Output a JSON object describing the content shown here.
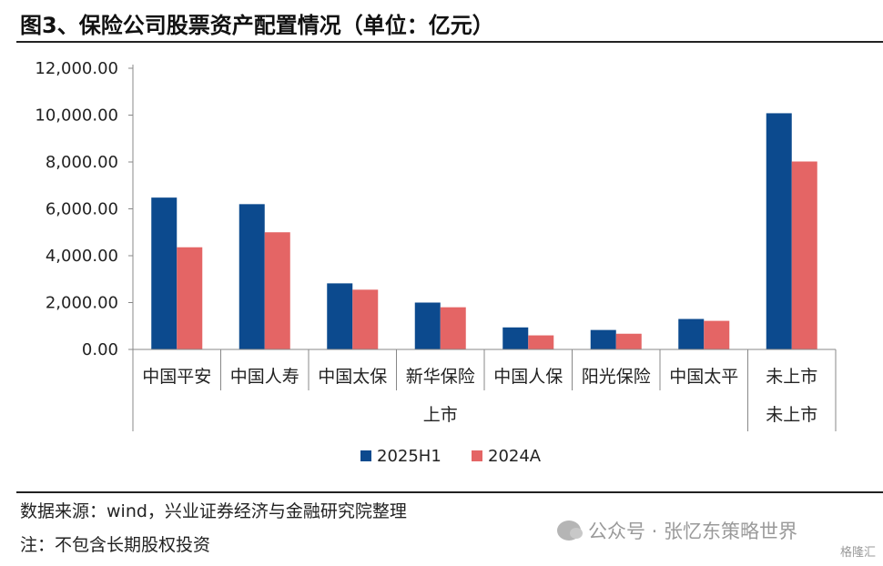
{
  "title": "图3、保险公司股票资产配置情况（单位：亿元）",
  "chart_data": {
    "type": "bar",
    "categories": [
      "中国平安",
      "中国人寿",
      "中国太保",
      "新华保险",
      "中国人保",
      "阳光保险",
      "中国太平",
      "未上市"
    ],
    "groups": [
      {
        "label": "上市",
        "count": 7
      },
      {
        "label": "未上市",
        "count": 1
      }
    ],
    "series": [
      {
        "name": "2025H1",
        "color": "#0c4a8e",
        "values": [
          6480,
          6200,
          2820,
          2000,
          940,
          830,
          1300,
          10080
        ]
      },
      {
        "name": "2024A",
        "color": "#e46565",
        "values": [
          4360,
          5000,
          2550,
          1800,
          600,
          670,
          1220,
          8020
        ]
      }
    ],
    "yticks": [
      "0.00",
      "2,000.00",
      "4,000.00",
      "6,000.00",
      "8,000.00",
      "10,000.00",
      "12,000.00"
    ],
    "ylim": [
      0,
      12000
    ],
    "legend": "bottom-center",
    "grid": false
  },
  "footer": {
    "source": "数据来源：wind，兴业证券经济与金融研究院整理",
    "note": "注：不包含长期股权投资"
  },
  "watermark": {
    "text": "公众号 · 张忆东策略世界",
    "brand": "格隆汇"
  }
}
